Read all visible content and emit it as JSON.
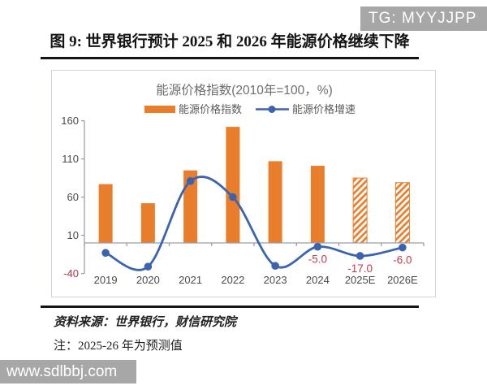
{
  "watermarks": {
    "top": "TG: MYYJJPP",
    "bottom": "www.sdlbbj.com"
  },
  "figure": {
    "title": "图 9: 世界银行预计 2025 和 2026 年能源价格继续下降",
    "source": "资料来源：世界银行，财信研究院",
    "note": "注：2025-26 年为预测值"
  },
  "chart_data": {
    "type": "bar",
    "title": "能源价格指数(2010年=100，%)",
    "categories": [
      "2019",
      "2020",
      "2021",
      "2022",
      "2023",
      "2024",
      "2025E",
      "2026E"
    ],
    "series": [
      {
        "name": "能源价格指数",
        "type": "bar",
        "color": "#E87E2B",
        "values": [
          77,
          52,
          95,
          152,
          107,
          101,
          85,
          79
        ],
        "hatched_categories": [
          "2025E",
          "2026E"
        ]
      },
      {
        "name": "能源价格增速",
        "type": "line",
        "smooth": true,
        "color": "#3C64AE",
        "values": [
          -13,
          -31,
          81,
          60,
          -30,
          -5,
          -17,
          -6
        ]
      }
    ],
    "data_labels": [
      {
        "category": "2024",
        "text": "-5.0"
      },
      {
        "category": "2025E",
        "text": "-17.0"
      },
      {
        "category": "2026E",
        "text": "-6.0"
      }
    ],
    "data_label_color": "#C23B4E",
    "y_tick_labels": [
      "160",
      "110",
      "60",
      "10",
      "-40"
    ],
    "y_tick_values": [
      160,
      110,
      60,
      10,
      -40
    ],
    "negative_tick_color": "#B53246",
    "tick_text_color": "#4a4a4a",
    "axis_color": "#9aa0a6",
    "title_color": "#6e6e6e",
    "legend_text_color": "#595959",
    "ylim": [
      -40,
      160
    ],
    "grid": false,
    "legend_position": "top"
  }
}
